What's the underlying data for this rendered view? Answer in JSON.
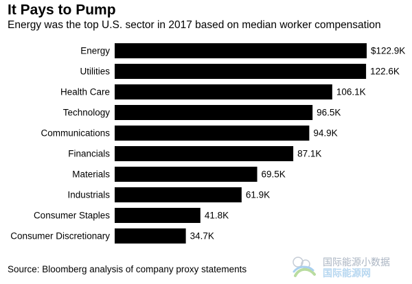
{
  "header": {
    "title": "It Pays to Pump",
    "subtitle": "Energy was the top U.S. sector in 2017 based on median worker compensation"
  },
  "footer": {
    "source": "Source: Bloomberg analysis of company proxy statements"
  },
  "watermark": {
    "line1": "国际能源小数据",
    "line2": "国际能源网"
  },
  "colors": {
    "bar": "#000000",
    "text": "#000000",
    "background": "#ffffff"
  },
  "chart_data": {
    "type": "bar",
    "orientation": "horizontal",
    "title": "It Pays to Pump",
    "subtitle": "Energy was the top U.S. sector in 2017 based on median worker compensation",
    "xlabel": "",
    "ylabel": "",
    "categories": [
      "Energy",
      "Utilities",
      "Health Care",
      "Technology",
      "Communications",
      "Financials",
      "Materials",
      "Industrials",
      "Consumer Staples",
      "Consumer Discretionary"
    ],
    "values": [
      122.9,
      122.6,
      106.1,
      96.5,
      94.9,
      87.1,
      69.5,
      61.9,
      41.8,
      34.7
    ],
    "data_labels": [
      "$122.9K",
      "122.6K",
      "106.1K",
      "96.5K",
      "94.9K",
      "87.1K",
      "69.5K",
      "61.9K",
      "41.8K",
      "34.7K"
    ],
    "unit": "thousand USD",
    "xlim": [
      0,
      122.9
    ],
    "grid": false,
    "legend": "none"
  }
}
